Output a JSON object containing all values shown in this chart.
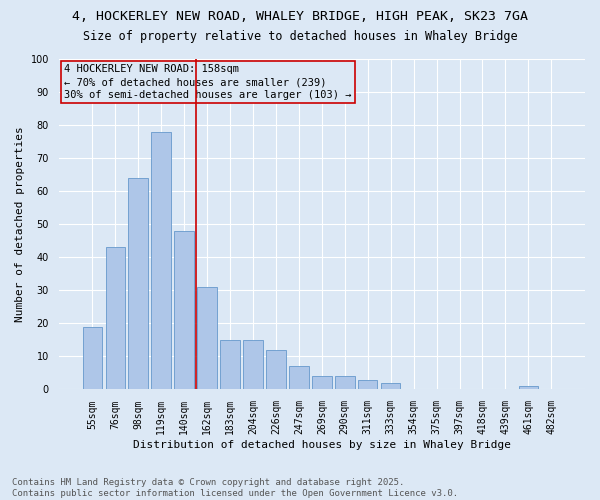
{
  "title_line1": "4, HOCKERLEY NEW ROAD, WHALEY BRIDGE, HIGH PEAK, SK23 7GA",
  "title_line2": "Size of property relative to detached houses in Whaley Bridge",
  "xlabel": "Distribution of detached houses by size in Whaley Bridge",
  "ylabel": "Number of detached properties",
  "categories": [
    "55sqm",
    "76sqm",
    "98sqm",
    "119sqm",
    "140sqm",
    "162sqm",
    "183sqm",
    "204sqm",
    "226sqm",
    "247sqm",
    "269sqm",
    "290sqm",
    "311sqm",
    "333sqm",
    "354sqm",
    "375sqm",
    "397sqm",
    "418sqm",
    "439sqm",
    "461sqm",
    "482sqm"
  ],
  "values": [
    19,
    43,
    64,
    78,
    48,
    31,
    15,
    15,
    12,
    7,
    4,
    4,
    3,
    2,
    0,
    0,
    0,
    0,
    0,
    1,
    0
  ],
  "bar_color": "#aec6e8",
  "bar_edge_color": "#6699cc",
  "background_color": "#dce8f5",
  "grid_color": "#ffffff",
  "vline_color": "#cc0000",
  "annotation_title": "4 HOCKERLEY NEW ROAD: 158sqm",
  "annotation_line2": "← 70% of detached houses are smaller (239)",
  "annotation_line3": "30% of semi-detached houses are larger (103) →",
  "annotation_box_color": "#cc0000",
  "ylim": [
    0,
    100
  ],
  "yticks": [
    0,
    10,
    20,
    30,
    40,
    50,
    60,
    70,
    80,
    90,
    100
  ],
  "footnote_line1": "Contains HM Land Registry data © Crown copyright and database right 2025.",
  "footnote_line2": "Contains public sector information licensed under the Open Government Licence v3.0.",
  "title_fontsize": 9.5,
  "subtitle_fontsize": 8.5,
  "axis_label_fontsize": 8,
  "tick_fontsize": 7,
  "annotation_fontsize": 7.5,
  "footnote_fontsize": 6.5
}
